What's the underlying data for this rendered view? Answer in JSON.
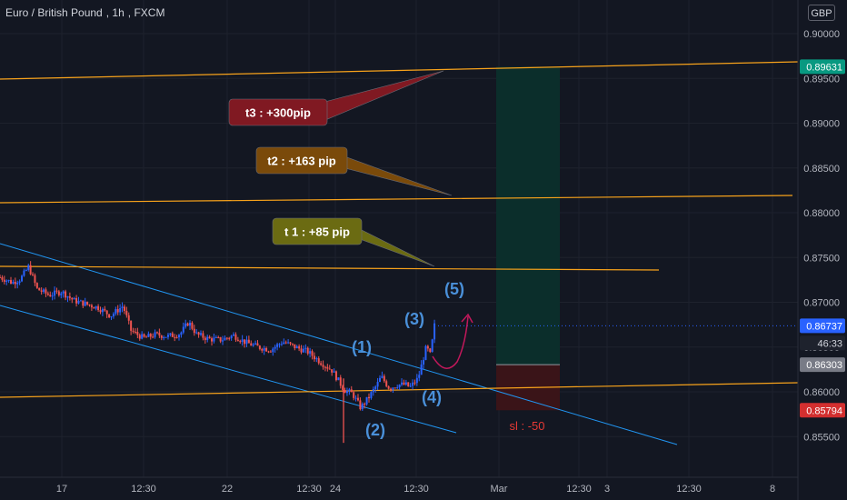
{
  "header": {
    "symbol": "Euro / British Pound",
    "interval": "1h",
    "exchange": "FXCM",
    "currency": "GBP",
    "countdown": "46:33"
  },
  "colors": {
    "background": "#131722",
    "grid": "#1e222d",
    "axis_text": "#b2b5be",
    "up_candle": "#2962ff",
    "down_candle": "#ef5350",
    "channel": "#2196f3",
    "target_line": "#f7a21b",
    "wave_label": "#4a90d9",
    "projection_arrow": "#c2185b",
    "profit_zone": "#0b2e2b",
    "loss_zone": "#3a1418",
    "price_badge_current": "#2962ff",
    "price_badge_target": "#089981",
    "price_badge_stop": "#d32f2f",
    "price_badge_entry": "#787b86"
  },
  "chart_data": {
    "type": "candlestick",
    "title": "Euro / British Pound, 1h, FXCM",
    "y_axis": {
      "ticks": [
        "0.90000",
        "0.89500",
        "0.89000",
        "0.88500",
        "0.88000",
        "0.87500",
        "0.87000",
        "0.86500",
        "0.86000",
        "0.85500"
      ],
      "ylim": [
        0.8535,
        0.902
      ]
    },
    "x_axis": {
      "ticks": [
        "17",
        "12:30",
        "22",
        "12:30",
        "24",
        "12:30",
        "Mar",
        "12:30",
        "3",
        "12:30",
        "8"
      ]
    },
    "price_labels": {
      "target": "0.89631",
      "current": "0.86737",
      "entry": "0.86303",
      "stop": "0.85794"
    },
    "annotations": {
      "t3": "t3 : +300pip",
      "t2": "t2 : +163 pip",
      "t1": "t 1 : +85 pip",
      "sl": "sl : -50",
      "waves": [
        "(1)",
        "(2)",
        "(3)",
        "(4)",
        "(5)"
      ]
    },
    "price_path": [
      [
        0,
        0.8728
      ],
      [
        0.03,
        0.8722
      ],
      [
        0.05,
        0.8726
      ],
      [
        0.07,
        0.874
      ],
      [
        0.09,
        0.8715
      ],
      [
        0.12,
        0.8708
      ],
      [
        0.15,
        0.8712
      ],
      [
        0.18,
        0.8702
      ],
      [
        0.21,
        0.8698
      ],
      [
        0.24,
        0.8694
      ],
      [
        0.27,
        0.8685
      ],
      [
        0.3,
        0.8696
      ],
      [
        0.32,
        0.8668
      ],
      [
        0.35,
        0.866
      ],
      [
        0.38,
        0.8664
      ],
      [
        0.41,
        0.8662
      ],
      [
        0.44,
        0.8665
      ],
      [
        0.46,
        0.8678
      ],
      [
        0.48,
        0.8664
      ],
      [
        0.51,
        0.8659
      ],
      [
        0.54,
        0.8658
      ],
      [
        0.57,
        0.8663
      ],
      [
        0.6,
        0.8655
      ],
      [
        0.63,
        0.865
      ],
      [
        0.66,
        0.8647
      ],
      [
        0.69,
        0.8656
      ],
      [
        0.72,
        0.865
      ],
      [
        0.75,
        0.8645
      ],
      [
        0.78,
        0.8634
      ],
      [
        0.81,
        0.8624
      ],
      [
        0.84,
        0.8602
      ],
      [
        0.86,
        0.8598
      ],
      [
        0.88,
        0.8582
      ],
      [
        0.9,
        0.8594
      ],
      [
        0.92,
        0.8608
      ],
      [
        0.93,
        0.8617
      ],
      [
        0.95,
        0.8604
      ],
      [
        0.97,
        0.8608
      ],
      [
        0.98,
        0.8608
      ],
      [
        0.99,
        0.8608
      ],
      [
        1.0,
        0.8605
      ],
      [
        1.02,
        0.8615
      ],
      [
        1.04,
        0.865
      ],
      [
        1.05,
        0.8641
      ],
      [
        1.06,
        0.8674
      ]
    ]
  }
}
